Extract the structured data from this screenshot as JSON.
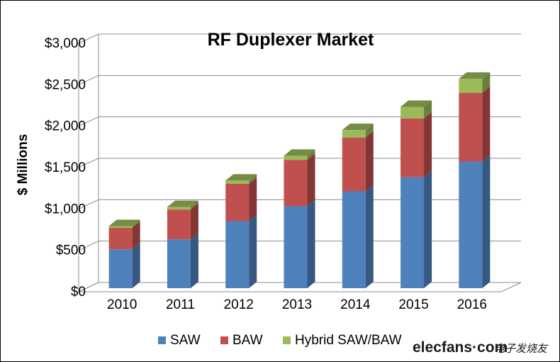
{
  "chart_data": {
    "type": "bar",
    "stacked": true,
    "three_d": true,
    "title": "RF Duplexer Market",
    "ylabel": "$ Millions",
    "xlabel": "",
    "categories": [
      "2010",
      "2011",
      "2012",
      "2013",
      "2014",
      "2015",
      "2016"
    ],
    "ylim": [
      0,
      3000
    ],
    "y_ticks": [
      0,
      500,
      1000,
      1500,
      2000,
      2500,
      3000
    ],
    "y_tick_labels": [
      "$0",
      "$500",
      "$1,000",
      "$1,500",
      "$2,000",
      "$2,500",
      "$3,000"
    ],
    "grid": true,
    "legend_position": "bottom",
    "series": [
      {
        "name": "SAW",
        "values": [
          470,
          590,
          810,
          990,
          1170,
          1340,
          1530
        ],
        "color": "#4F81BD"
      },
      {
        "name": "BAW",
        "values": [
          260,
          360,
          450,
          560,
          650,
          710,
          830
        ],
        "color": "#C0504D"
      },
      {
        "name": "Hybrid SAW/BAW",
        "values": [
          20,
          30,
          40,
          50,
          90,
          140,
          170
        ],
        "color": "#9BBB59"
      }
    ]
  },
  "watermark": {
    "brand": "elecfans·com",
    "suffix": "电子发烧友"
  }
}
